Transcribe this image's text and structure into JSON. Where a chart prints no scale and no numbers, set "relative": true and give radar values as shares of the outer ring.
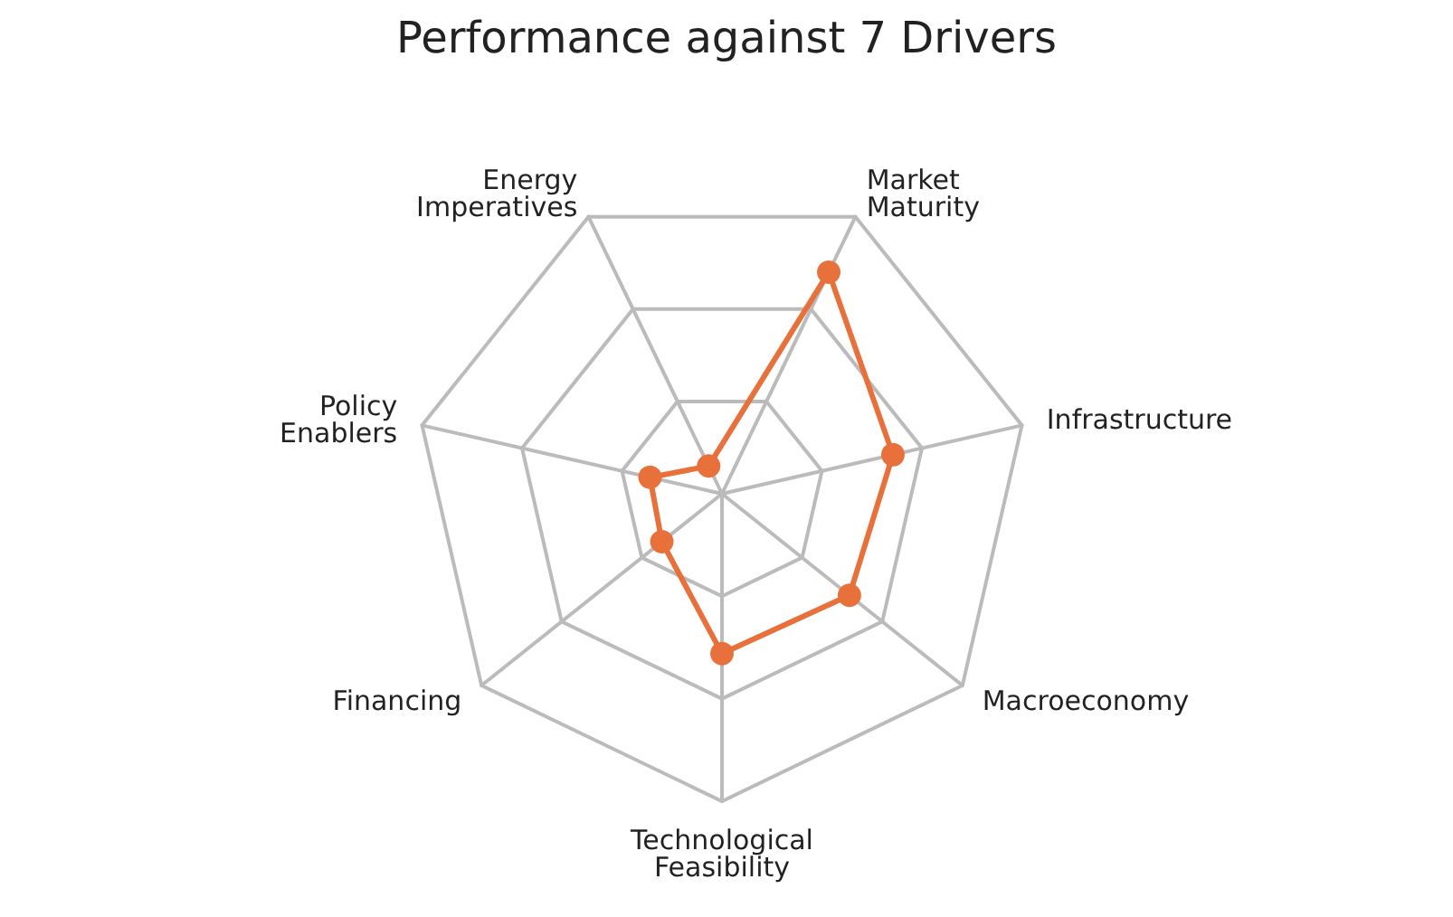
{
  "chart_data": {
    "type": "radar",
    "title": "Performance against 7 Drivers",
    "categories": [
      "Market\nMaturity",
      "Infrastructure",
      "Macroeconomy",
      "Technological\nFeasibility",
      "Financing",
      "Policy\nEnablers",
      "Energy\nImperatives"
    ],
    "series": [
      {
        "color": "#e8703a",
        "values": [
          0.8,
          0.57,
          0.53,
          0.52,
          0.25,
          0.24,
          0.1
        ]
      }
    ],
    "relative": true,
    "grid": true,
    "marker": "circle"
  }
}
